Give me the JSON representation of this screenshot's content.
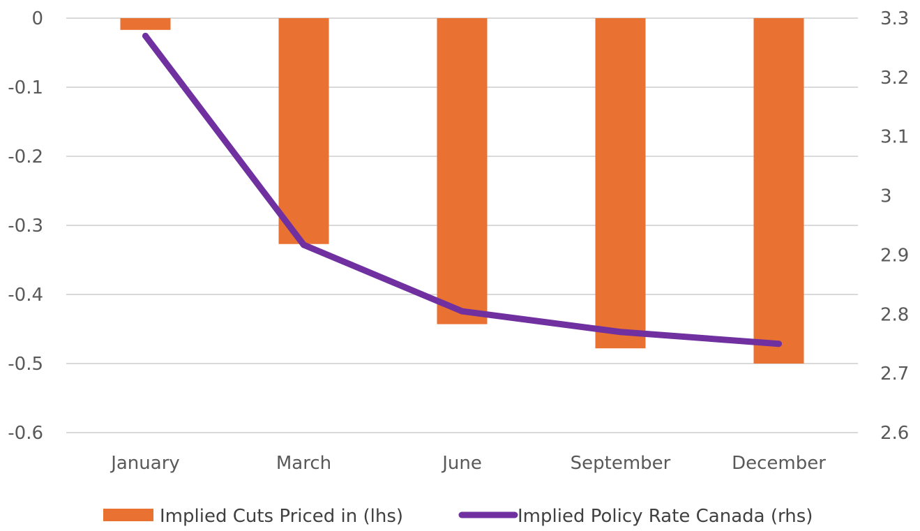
{
  "chart_data": {
    "type": "bar",
    "categories": [
      "January",
      "March",
      "June",
      "September",
      "December"
    ],
    "series": [
      {
        "name": "Implied Cuts Priced in (lhs)",
        "type": "bar",
        "axis": "left",
        "color": "#E97132",
        "values": [
          -0.017,
          -0.327,
          -0.443,
          -0.478,
          -0.5
        ]
      },
      {
        "name": "Implied Policy Rate Canada (rhs)",
        "type": "line",
        "axis": "right",
        "color": "#7030A0",
        "values": [
          3.27,
          2.917,
          2.805,
          2.77,
          2.75
        ]
      }
    ],
    "left_axis": {
      "ylim": [
        -0.6,
        0
      ],
      "ticks": [
        "0",
        "-0.1",
        "-0.2",
        "-0.3",
        "-0.4",
        "-0.5",
        "-0.6"
      ]
    },
    "right_axis": {
      "ylim": [
        2.6,
        3.3
      ],
      "ticks": [
        "3.3",
        "3.2",
        "3.1",
        "3",
        "2.9",
        "2.8",
        "2.7",
        "2.6"
      ]
    },
    "grid": true,
    "legend_position": "bottom"
  }
}
